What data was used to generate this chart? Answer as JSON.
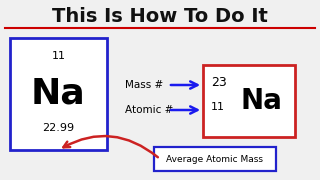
{
  "bg_color": "#f0f0f0",
  "title": "This Is How To Do It",
  "title_color": "#111111",
  "title_underline_color": "#cc0000",
  "left_box_border_color": "#2222cc",
  "left_box_atomic_number": "11",
  "left_box_symbol": "Na",
  "left_box_mass": "22.99",
  "right_box_border_color": "#cc2222",
  "right_box_mass_number": "23",
  "right_box_atomic_number": "11",
  "right_box_symbol": "Na",
  "mass_label": "Mass #",
  "atomic_label": "Atomic #",
  "arrow_color": "#1a1aee",
  "avg_mass_label": "Average Atomic Mass",
  "avg_box_border_color": "#2222cc",
  "red_arrow_color": "#cc2222"
}
